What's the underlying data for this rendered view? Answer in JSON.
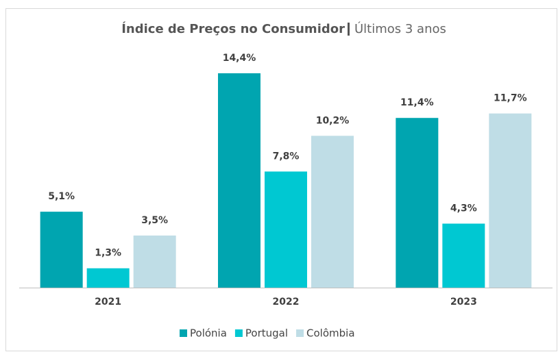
{
  "chart_data": {
    "type": "bar",
    "title": "Índice de Preços no Consumidor",
    "subtitle": "Últimos 3 anos",
    "categories": [
      "2021",
      "2022",
      "2023"
    ],
    "series": [
      {
        "name": "Polónia",
        "color": "#00a5b0",
        "values": [
          5.1,
          14.4,
          11.4
        ],
        "value_labels": [
          "5,1%",
          "14,4%",
          "11,4%"
        ]
      },
      {
        "name": "Portugal",
        "color": "#00c8d2",
        "values": [
          1.3,
          7.8,
          4.3
        ],
        "value_labels": [
          "1,3%",
          "7,8%",
          "4,3%"
        ]
      },
      {
        "name": "Colômbia",
        "color": "#bfdde6",
        "values": [
          3.5,
          10.2,
          11.7
        ],
        "value_labels": [
          "3,5%",
          "10,2%",
          "11,7%"
        ]
      }
    ],
    "legend": "bottom"
  }
}
